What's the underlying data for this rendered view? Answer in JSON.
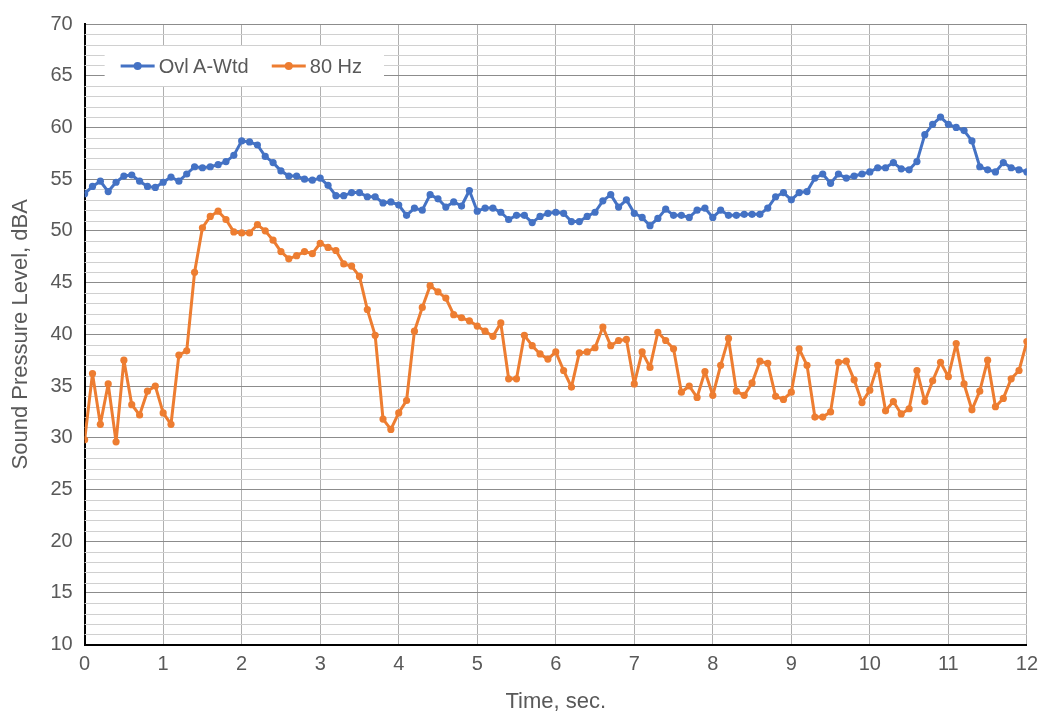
{
  "chart_data": {
    "type": "line",
    "xlabel": "Time, sec.",
    "ylabel": "Sound Pressure Level, dBA",
    "x": [
      0,
      0.1,
      0.2,
      0.3,
      0.4,
      0.5,
      0.6,
      0.7,
      0.8,
      0.9,
      1,
      1.1,
      1.2,
      1.3,
      1.4,
      1.5,
      1.6,
      1.7,
      1.8,
      1.9,
      2,
      2.1,
      2.2,
      2.3,
      2.4,
      2.5,
      2.6,
      2.7,
      2.8,
      2.9,
      3,
      3.1,
      3.2,
      3.3,
      3.4,
      3.5,
      3.6,
      3.7,
      3.8,
      3.9,
      4,
      4.1,
      4.2,
      4.3,
      4.4,
      4.5,
      4.6,
      4.7,
      4.8,
      4.9,
      5,
      5.1,
      5.2,
      5.3,
      5.4,
      5.5,
      5.6,
      5.7,
      5.8,
      5.9,
      6,
      6.1,
      6.2,
      6.3,
      6.4,
      6.5,
      6.6,
      6.7,
      6.8,
      6.9,
      7,
      7.1,
      7.2,
      7.3,
      7.4,
      7.5,
      7.6,
      7.7,
      7.8,
      7.9,
      8,
      8.1,
      8.2,
      8.3,
      8.4,
      8.5,
      8.6,
      8.7,
      8.8,
      8.9,
      9,
      9.1,
      9.2,
      9.3,
      9.4,
      9.5,
      9.6,
      9.7,
      9.8,
      9.9,
      10,
      10.1,
      10.2,
      10.3,
      10.4,
      10.5,
      10.6,
      10.7,
      10.8,
      10.9,
      11,
      11.1,
      11.2,
      11.3,
      11.4,
      11.5,
      11.6,
      11.7,
      11.8,
      11.9,
      12
    ],
    "series": [
      {
        "name": "Ovl A-Wtd",
        "color": "#4472c4",
        "values": [
          53.6,
          54.3,
          54.8,
          53.8,
          54.7,
          55.3,
          55.4,
          54.8,
          54.3,
          54.2,
          54.7,
          55.2,
          54.8,
          55.5,
          56.2,
          56.1,
          56.2,
          56.4,
          56.7,
          57.3,
          58.7,
          58.6,
          58.3,
          57.2,
          56.6,
          55.8,
          55.3,
          55.3,
          55.0,
          54.9,
          55.1,
          54.4,
          53.4,
          53.4,
          53.7,
          53.7,
          53.3,
          53.3,
          52.7,
          52.8,
          52.5,
          51.5,
          52.2,
          52.0,
          53.5,
          53.1,
          52.3,
          52.8,
          52.4,
          53.9,
          51.9,
          52.2,
          52.2,
          51.8,
          51.1,
          51.5,
          51.5,
          50.8,
          51.4,
          51.7,
          51.8,
          51.7,
          50.9,
          50.9,
          51.4,
          51.8,
          52.9,
          53.5,
          52.3,
          53.0,
          51.7,
          51.3,
          50.5,
          51.2,
          52.1,
          51.5,
          51.5,
          51.3,
          52.0,
          52.2,
          51.3,
          52.0,
          51.5,
          51.5,
          51.6,
          51.6,
          51.6,
          52.2,
          53.3,
          53.7,
          53.0,
          53.7,
          53.8,
          55.1,
          55.5,
          54.6,
          55.5,
          55.1,
          55.3,
          55.5,
          55.7,
          56.1,
          56.1,
          56.6,
          56.0,
          55.9,
          56.7,
          59.3,
          60.3,
          61.0,
          60.3,
          60.0,
          59.7,
          58.7,
          56.2,
          55.9,
          55.7,
          56.6,
          56.1,
          55.9,
          55.7
        ]
      },
      {
        "name": "80 Hz",
        "color": "#ed7d31",
        "values": [
          29.8,
          36.2,
          31.3,
          35.2,
          29.6,
          37.5,
          33.2,
          32.2,
          34.5,
          35.0,
          32.4,
          31.3,
          38.0,
          38.4,
          46.0,
          50.3,
          51.4,
          51.9,
          51.1,
          49.9,
          49.8,
          49.8,
          50.6,
          50.0,
          49.1,
          48.0,
          47.3,
          47.6,
          48.0,
          47.8,
          48.8,
          48.4,
          48.1,
          46.8,
          46.6,
          45.6,
          42.4,
          39.9,
          31.8,
          30.8,
          32.4,
          33.6,
          40.3,
          42.6,
          44.7,
          44.1,
          43.5,
          41.9,
          41.6,
          41.3,
          40.8,
          40.3,
          39.8,
          41.1,
          35.7,
          35.7,
          39.9,
          38.9,
          38.1,
          37.6,
          38.3,
          36.5,
          34.9,
          38.2,
          38.3,
          38.7,
          40.7,
          38.9,
          39.4,
          39.5,
          35.2,
          38.3,
          36.8,
          40.2,
          39.4,
          38.6,
          34.4,
          35.0,
          33.9,
          36.4,
          34.1,
          37.0,
          39.6,
          34.5,
          34.1,
          35.3,
          37.4,
          37.2,
          34.0,
          33.7,
          34.4,
          38.6,
          37.0,
          32.0,
          32.0,
          32.5,
          37.3,
          37.4,
          35.6,
          33.4,
          34.6,
          37.0,
          32.6,
          33.5,
          32.3,
          32.8,
          36.5,
          33.5,
          35.5,
          37.3,
          35.9,
          39.1,
          35.2,
          32.7,
          34.5,
          37.5,
          33.0,
          33.8,
          35.7,
          36.5,
          39.3
        ]
      }
    ],
    "xlim": [
      0,
      12
    ],
    "xticks": [
      0,
      1,
      2,
      3,
      4,
      5,
      6,
      7,
      8,
      9,
      10,
      11,
      12
    ],
    "ylim": [
      10,
      70
    ],
    "yticks": [
      10,
      15,
      20,
      25,
      30,
      35,
      40,
      45,
      50,
      55,
      60,
      65,
      70
    ],
    "grid": true,
    "legend": "top left",
    "marker": "circle",
    "line_style": "solid"
  }
}
